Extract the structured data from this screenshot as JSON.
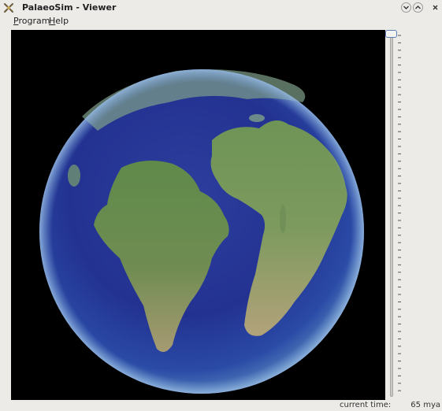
{
  "window": {
    "title": "PalaeoSim - Viewer"
  },
  "menu": {
    "items": [
      {
        "mnemonic": "P",
        "rest": "rogram"
      },
      {
        "mnemonic": "H",
        "rest": "elp"
      }
    ]
  },
  "viewer": {
    "globe": "earth-globe-image"
  },
  "timeline": {
    "slider_position": 0.0
  },
  "status": {
    "label": "current time:",
    "value": "65 mya"
  },
  "icons": {
    "app": "palaeosim-app-icon",
    "minimize": "chevron-down-icon",
    "maximize": "chevron-up-icon",
    "close": "close-icon"
  }
}
